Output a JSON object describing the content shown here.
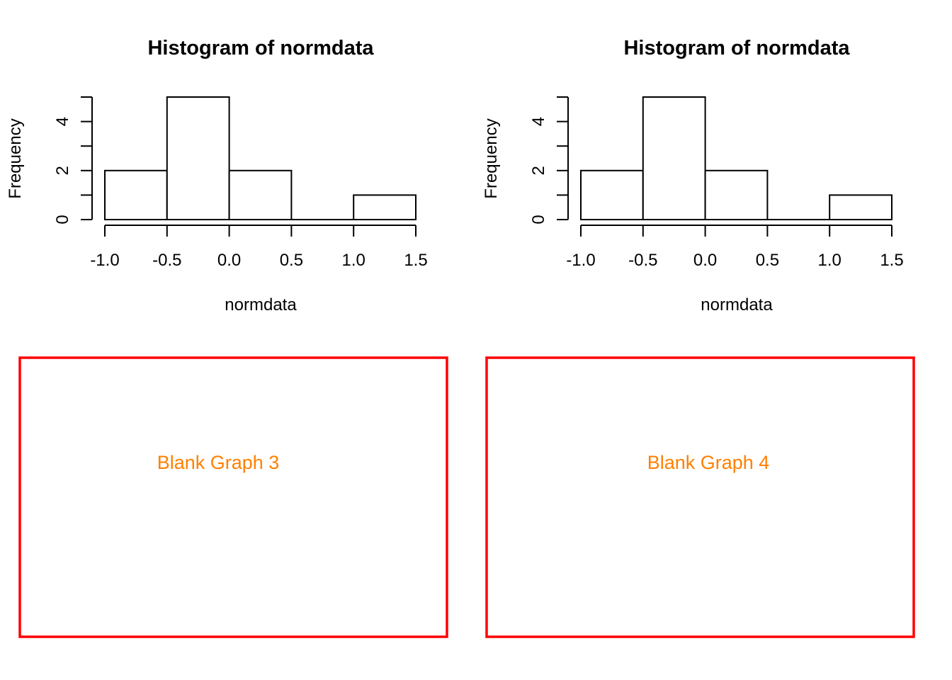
{
  "colors": {
    "bar_stroke": "#000000",
    "bar_fill": "#ffffff",
    "blank_border": "#ff0000",
    "blank_text": "#ff8000"
  },
  "chart_data": [
    {
      "type": "bar",
      "subtype": "histogram",
      "title": "Histogram of normdata",
      "xlabel": "normdata",
      "ylabel": "Frequency",
      "bins": [
        [
          -1.0,
          -0.5
        ],
        [
          -0.5,
          0.0
        ],
        [
          0.0,
          0.5
        ],
        [
          0.5,
          1.0
        ],
        [
          1.0,
          1.5
        ]
      ],
      "values": [
        2,
        5,
        2,
        0,
        1
      ],
      "xlim": [
        -1.0,
        1.5
      ],
      "ylim": [
        0,
        5
      ],
      "xticks": [
        "-1.0",
        "-0.5",
        "0.0",
        "0.5",
        "1.0",
        "1.5"
      ],
      "yticks": [
        "0",
        "2",
        "4"
      ],
      "grid": false,
      "legend": "none"
    },
    {
      "type": "bar",
      "subtype": "histogram",
      "title": "Histogram of normdata",
      "xlabel": "normdata",
      "ylabel": "Frequency",
      "bins": [
        [
          -1.0,
          -0.5
        ],
        [
          -0.5,
          0.0
        ],
        [
          0.0,
          0.5
        ],
        [
          0.5,
          1.0
        ],
        [
          1.0,
          1.5
        ]
      ],
      "values": [
        2,
        5,
        2,
        0,
        1
      ],
      "xlim": [
        -1.0,
        1.5
      ],
      "ylim": [
        0,
        5
      ],
      "xticks": [
        "-1.0",
        "-0.5",
        "0.0",
        "0.5",
        "1.0",
        "1.5"
      ],
      "yticks": [
        "0",
        "2",
        "4"
      ],
      "grid": false,
      "legend": "none"
    }
  ],
  "blank_panels": [
    {
      "label": "Blank Graph 3"
    },
    {
      "label": "Blank Graph 4"
    }
  ]
}
